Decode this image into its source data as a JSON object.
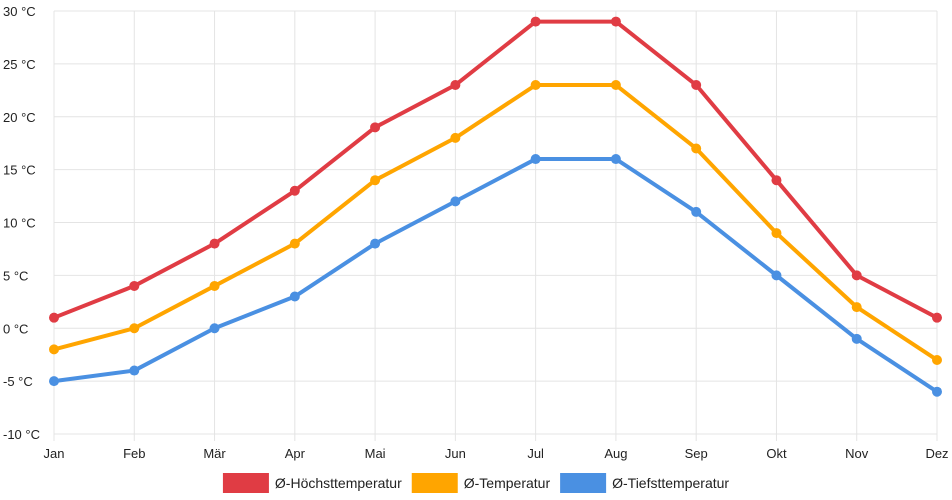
{
  "chart_data": {
    "type": "line",
    "categories": [
      "Jan",
      "Feb",
      "Mär",
      "Apr",
      "Mai",
      "Jun",
      "Jul",
      "Aug",
      "Sep",
      "Okt",
      "Nov",
      "Dez"
    ],
    "ylim": [
      -10,
      30
    ],
    "y_ticks": [
      -10,
      -5,
      0,
      5,
      10,
      15,
      20,
      25,
      30
    ],
    "y_unit": "°C",
    "grid": true,
    "legend_position": "bottom",
    "series": [
      {
        "name": "Ø-Höchsttemperatur",
        "color": "#e03c44",
        "values": [
          1,
          4,
          8,
          13,
          19,
          23,
          29,
          29,
          23,
          14,
          5,
          1
        ]
      },
      {
        "name": "Ø-Temperatur",
        "color": "#ffa500",
        "values": [
          -2,
          0,
          4,
          8,
          14,
          18,
          23,
          23,
          17,
          9,
          2,
          -3
        ]
      },
      {
        "name": "Ø-Tiefsttemperatur",
        "color": "#4a90e2",
        "values": [
          -5,
          -4,
          0,
          3,
          8,
          12,
          16,
          16,
          11,
          5,
          -1,
          -6
        ]
      }
    ]
  }
}
